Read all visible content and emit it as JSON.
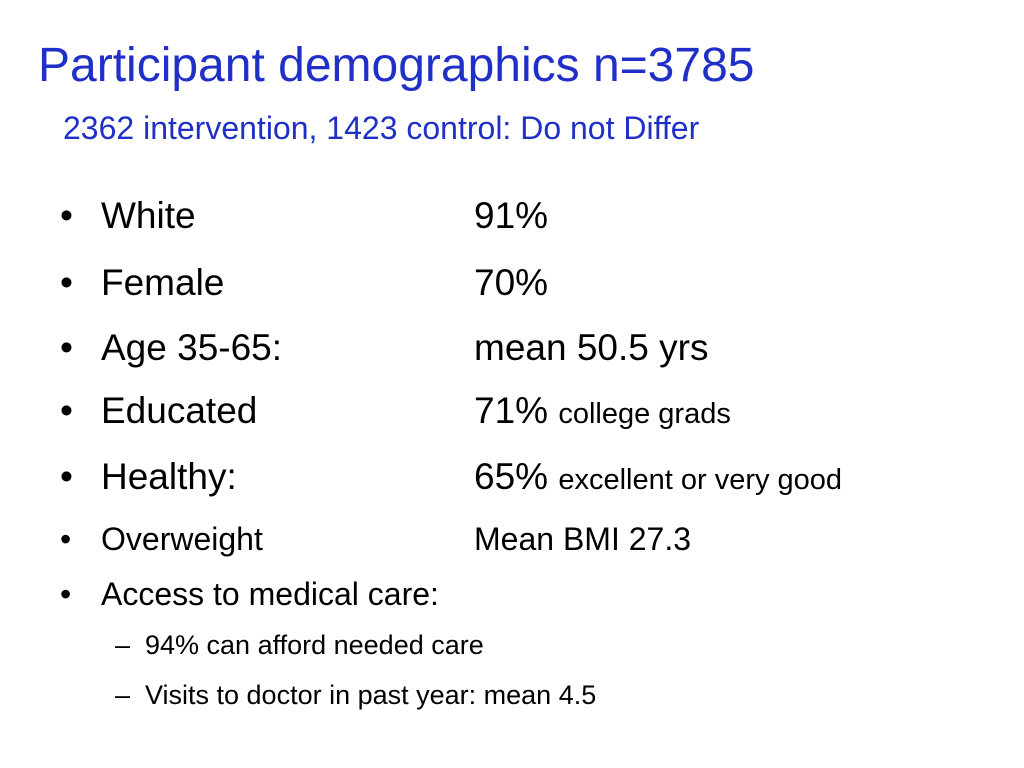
{
  "slide": {
    "title": "Participant demographics n=3785",
    "subtitle": "2362 intervention, 1423 control: Do not Differ",
    "title_color": "#1f2fc7",
    "bullet_glyph": "•",
    "dash_glyph": "–",
    "items": [
      {
        "label": "White",
        "value": "91%",
        "note": ""
      },
      {
        "label": "Female",
        "value": "70%",
        "note": ""
      },
      {
        "label": "Age 35-65:",
        "value": "mean 50.5 yrs",
        "note": ""
      },
      {
        "label": "Educated",
        "value": "71%",
        "note": "college grads"
      },
      {
        "label": "Healthy:",
        "value": "65%",
        "note": "excellent or very good"
      },
      {
        "label": "Overweight",
        "value": "Mean BMI 27.3",
        "note": ""
      },
      {
        "label": "Access to medical care:",
        "value": "",
        "note": ""
      }
    ],
    "subitems": [
      "94% can afford needed care",
      "Visits to doctor in past year: mean 4.5"
    ]
  }
}
